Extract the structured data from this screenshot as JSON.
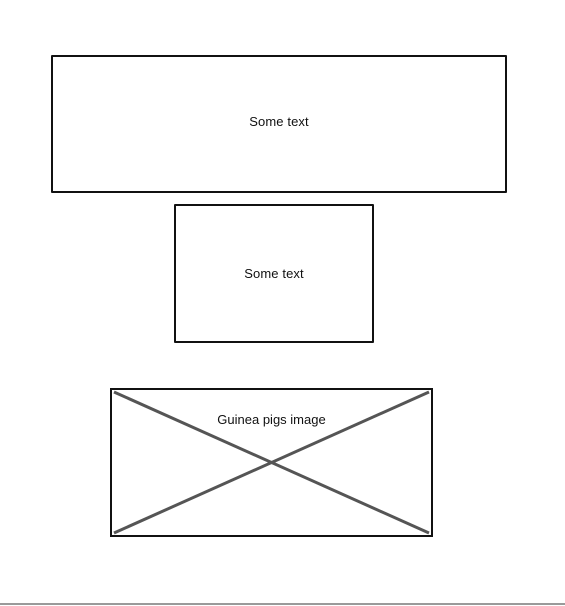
{
  "wireframe": {
    "text_boxes": [
      {
        "label": "Some text"
      },
      {
        "label": "Some text"
      }
    ],
    "image_placeholder": {
      "label": "Guinea pigs image",
      "icon": "image-placeholder-cross-icon"
    }
  },
  "colors": {
    "border": "#111111",
    "cross": "#555555",
    "background": "#ffffff",
    "bottom_rule": "#9a9a9a"
  }
}
